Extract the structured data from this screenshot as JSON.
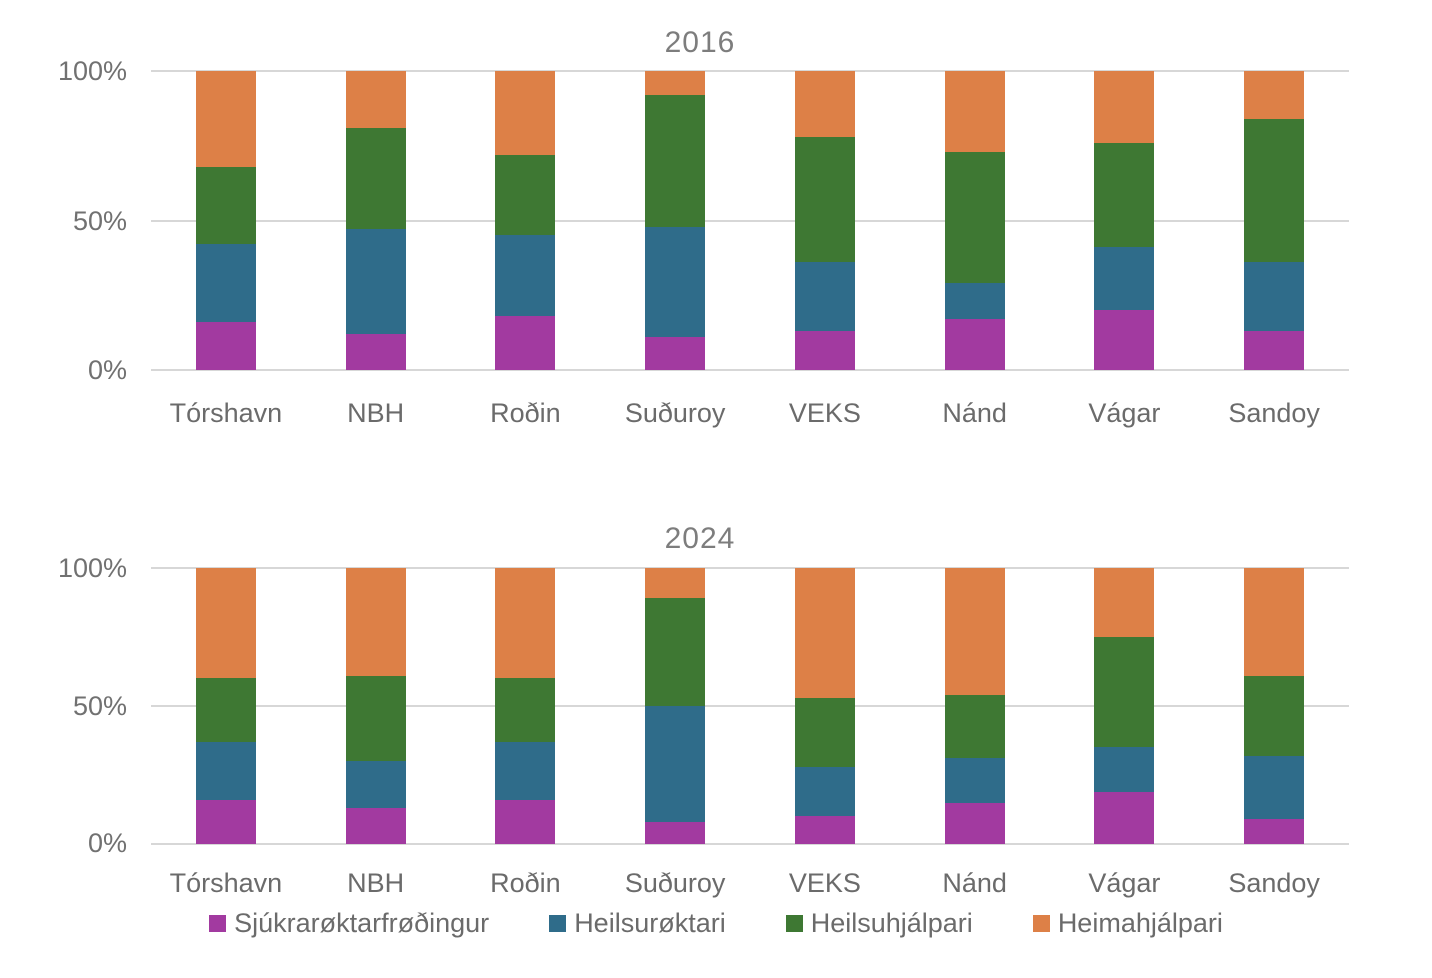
{
  "chart_data": [
    {
      "type": "bar",
      "stacked": true,
      "units": "percent",
      "title": "2016",
      "categories": [
        "Tórshavn",
        "NBH",
        "Roðin",
        "Suðuroy",
        "VEKS",
        "Nánd",
        "Vágar",
        "Sandoy"
      ],
      "series": [
        {
          "name": "Sjúkrarøktarfrøðingur",
          "color": "#A23AA0",
          "values": [
            16,
            12,
            18,
            11,
            13,
            17,
            20,
            13
          ]
        },
        {
          "name": "Heilsurøktari",
          "color": "#2F6C8A",
          "values": [
            26,
            35,
            27,
            37,
            23,
            12,
            21,
            23
          ]
        },
        {
          "name": "Heilsuhjálpari",
          "color": "#3E7833",
          "values": [
            26,
            34,
            27,
            44,
            42,
            44,
            35,
            48
          ]
        },
        {
          "name": "Heimahjálpari",
          "color": "#DD8047",
          "values": [
            32,
            19,
            28,
            8,
            22,
            27,
            24,
            16
          ]
        }
      ],
      "y_axis": {
        "ticks": [
          "0%",
          "50%",
          "100%"
        ],
        "min": 0,
        "max": 100
      },
      "grid": true,
      "legend": false
    },
    {
      "type": "bar",
      "stacked": true,
      "units": "percent",
      "title": "2024",
      "categories": [
        "Tórshavn",
        "NBH",
        "Roðin",
        "Suðuroy",
        "VEKS",
        "Nánd",
        "Vágar",
        "Sandoy"
      ],
      "series": [
        {
          "name": "Sjúkrarøktarfrøðingur",
          "color": "#A23AA0",
          "values": [
            16,
            13,
            16,
            8,
            10,
            15,
            19,
            9
          ]
        },
        {
          "name": "Heilsurøktari",
          "color": "#2F6C8A",
          "values": [
            21,
            17,
            21,
            42,
            18,
            16,
            16,
            23
          ]
        },
        {
          "name": "Heilsuhjálpari",
          "color": "#3E7833",
          "values": [
            23,
            31,
            23,
            39,
            25,
            23,
            40,
            29
          ]
        },
        {
          "name": "Heimahjálpari",
          "color": "#DD8047",
          "values": [
            40,
            39,
            40,
            11,
            47,
            46,
            25,
            39
          ]
        }
      ],
      "y_axis": {
        "ticks": [
          "0%",
          "50%",
          "100%"
        ],
        "min": 0,
        "max": 100
      },
      "grid": true,
      "legend": "bottom"
    }
  ],
  "legend": {
    "items": [
      {
        "label": "Sjúkrarøktarfrøðingur",
        "color": "#A23AA0"
      },
      {
        "label": "Heilsurøktari",
        "color": "#2F6C8A"
      },
      {
        "label": "Heilsuhjálpari",
        "color": "#3E7833"
      },
      {
        "label": "Heimahjálpari",
        "color": "#DD8047"
      }
    ]
  }
}
